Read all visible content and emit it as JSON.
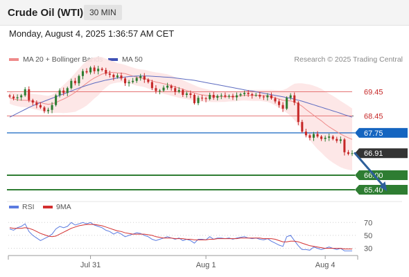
{
  "header": {
    "title": "Crude Oil (WTI)",
    "interval": "30 MIN",
    "datetime": "Monday, August 4, 2025 1:36:57 AM CET"
  },
  "legend": {
    "ma20": "MA 20 + Bollinger Bands",
    "ma50": "MA 50",
    "research": "Research © 2025 Trading Central"
  },
  "colors": {
    "bull": "#2e7d32",
    "bear": "#c62828",
    "ma20": "#ef8a8a",
    "ma50": "#5c6bc0",
    "band_fill": "#fde4e4",
    "resistance": "#e57373",
    "pivot": "#1565c0",
    "support": "#2e7d32",
    "arrow": "#2d5f9a",
    "rsi": "#5b7be0",
    "rsi_ma": "#d32f2f"
  },
  "chart_data": [
    {
      "type": "candlestick",
      "ylim": [
        65.2,
        69.95
      ],
      "x_ticks": [
        {
          "label": "Jul 31",
          "index": 21
        },
        {
          "label": "Aug 1",
          "index": 51
        },
        {
          "label": "Aug 4",
          "index": 82
        }
      ],
      "ma20_label": "MA 20 + Bollinger Bands",
      "ma50_label": "MA 50",
      "closes": [
        69.25,
        69.18,
        69.22,
        69.3,
        69.55,
        69.1,
        69.0,
        68.9,
        68.8,
        68.65,
        68.7,
        68.9,
        69.3,
        69.5,
        69.4,
        69.6,
        69.9,
        69.8,
        70.1,
        70.3,
        70.25,
        70.45,
        70.3,
        70.4,
        70.35,
        70.2,
        70.15,
        70.05,
        70.12,
        70.0,
        69.8,
        69.85,
        69.9,
        70.02,
        70.1,
        69.95,
        69.85,
        69.6,
        69.48,
        69.5,
        69.62,
        69.7,
        69.6,
        69.45,
        69.52,
        69.32,
        69.38,
        69.32,
        68.98,
        69.2,
        69.18,
        69.15,
        69.32,
        69.2,
        69.28,
        69.3,
        69.25,
        69.28,
        69.22,
        69.3,
        69.35,
        69.4,
        69.35,
        69.3,
        69.32,
        69.25,
        69.22,
        69.3,
        69.18,
        69.05,
        68.9,
        68.75,
        69.2,
        69.3,
        69.0,
        68.2,
        67.8,
        67.65,
        67.55,
        67.7,
        67.6,
        67.5,
        67.55,
        67.6,
        67.5,
        67.42,
        67.48,
        66.95,
        66.88,
        66.91
      ],
      "ma20": [
        69.2,
        69.15,
        69.12,
        69.1,
        69.1,
        69.08,
        69.05,
        69.02,
        69.0,
        68.96,
        68.93,
        68.95,
        69.0,
        69.08,
        69.15,
        69.23,
        69.32,
        69.42,
        69.55,
        69.68,
        69.8,
        69.92,
        70.02,
        70.1,
        70.18,
        70.22,
        70.25,
        70.25,
        70.23,
        70.22,
        70.2,
        70.15,
        70.1,
        70.05,
        70.02,
        70.0,
        69.95,
        69.9,
        69.85,
        69.82,
        69.78,
        69.75,
        69.7,
        69.65,
        69.6,
        69.55,
        69.5,
        69.45,
        69.4,
        69.35,
        69.32,
        69.3,
        69.28,
        69.26,
        69.25,
        69.25,
        69.24,
        69.25,
        69.25,
        69.26,
        69.28,
        69.3,
        69.3,
        69.3,
        69.3,
        69.3,
        69.29,
        69.28,
        69.25,
        69.2,
        69.15,
        69.1,
        69.08,
        69.07,
        69.03,
        68.95,
        68.85,
        68.72,
        68.6,
        68.48,
        68.36,
        68.25,
        68.12,
        68.0,
        67.9,
        67.8,
        67.7,
        67.62,
        67.55,
        67.48
      ],
      "ma50": [
        68.4,
        68.48,
        68.56,
        68.64,
        68.72,
        68.8,
        68.87,
        68.94,
        69.0,
        69.06,
        69.12,
        69.18,
        69.24,
        69.3,
        69.36,
        69.42,
        69.48,
        69.54,
        69.6,
        69.66,
        69.71,
        69.76,
        69.81,
        69.85,
        69.89,
        69.93,
        69.96,
        69.99,
        70.02,
        70.04,
        70.06,
        70.08,
        70.09,
        70.1,
        70.1,
        70.1,
        70.1,
        70.09,
        70.08,
        70.07,
        70.06,
        70.05,
        70.04,
        70.02,
        70.0,
        69.98,
        69.96,
        69.94,
        69.92,
        69.89,
        69.86,
        69.83,
        69.8,
        69.77,
        69.74,
        69.71,
        69.68,
        69.65,
        69.62,
        69.59,
        69.56,
        69.53,
        69.5,
        69.48,
        69.45,
        69.42,
        69.39,
        69.36,
        69.33,
        69.3,
        69.27,
        69.24,
        69.21,
        69.18,
        69.14,
        69.1,
        69.06,
        69.01,
        68.96,
        68.91,
        68.86,
        68.81,
        68.76,
        68.71,
        68.66,
        68.61,
        68.56,
        68.5,
        68.45,
        68.4
      ],
      "band_width": [
        0.25,
        0.26,
        0.27,
        0.28,
        0.29,
        0.3,
        0.31,
        0.32,
        0.33,
        0.34,
        0.35,
        0.38,
        0.42,
        0.5,
        0.58,
        0.65,
        0.72,
        0.8,
        0.85,
        0.9,
        0.92,
        0.9,
        0.85,
        0.8,
        0.7,
        0.6,
        0.5,
        0.45,
        0.4,
        0.38,
        0.36,
        0.35,
        0.35,
        0.35,
        0.35,
        0.36,
        0.37,
        0.38,
        0.4,
        0.41,
        0.42,
        0.42,
        0.42,
        0.41,
        0.4,
        0.38,
        0.36,
        0.34,
        0.32,
        0.3,
        0.28,
        0.26,
        0.25,
        0.24,
        0.23,
        0.22,
        0.21,
        0.2,
        0.2,
        0.2,
        0.2,
        0.21,
        0.22,
        0.23,
        0.23,
        0.23,
        0.24,
        0.25,
        0.28,
        0.32,
        0.36,
        0.42,
        0.5,
        0.62,
        0.75,
        0.85,
        0.95,
        1.05,
        1.15,
        1.22,
        1.28,
        1.32,
        1.35,
        1.37,
        1.38,
        1.38,
        1.37,
        1.35,
        1.32,
        1.28
      ],
      "levels": [
        {
          "label": "69.45",
          "value": 69.45,
          "kind": "resistance"
        },
        {
          "label": "68.45",
          "value": 68.45,
          "kind": "resistance"
        },
        {
          "label": "67.75",
          "value": 67.75,
          "kind": "pivot"
        },
        {
          "label": "66.91",
          "value": 66.91,
          "kind": "last"
        },
        {
          "label": "66.00",
          "value": 66.0,
          "kind": "support"
        },
        {
          "label": "65.40",
          "value": 65.4,
          "kind": "support"
        }
      ],
      "forecast_arrow": {
        "from": [
          89,
          66.91
        ],
        "to": [
          97,
          65.4
        ]
      }
    },
    {
      "type": "line",
      "legend": [
        "RSI",
        "9MA"
      ],
      "ylim": [
        22,
        80
      ],
      "y_ticks": [
        70,
        50,
        30
      ],
      "rsi": [
        60,
        58,
        62,
        64,
        68,
        56,
        50,
        46,
        42,
        45,
        48,
        52,
        60,
        64,
        62,
        64,
        70,
        66,
        68,
        70,
        68,
        70,
        66,
        64,
        62,
        58,
        56,
        52,
        55,
        52,
        48,
        50,
        52,
        54,
        53,
        50,
        48,
        44,
        42,
        44,
        46,
        48,
        46,
        44,
        46,
        42,
        44,
        42,
        38,
        44,
        44,
        43,
        48,
        44,
        46,
        46,
        45,
        46,
        44,
        46,
        47,
        48,
        46,
        45,
        46,
        44,
        43,
        45,
        41,
        38,
        35,
        33,
        48,
        50,
        42,
        34,
        28,
        28,
        27,
        32,
        30,
        28,
        30,
        32,
        30,
        28,
        30,
        26,
        26,
        26
      ],
      "rsi_ma": [
        62,
        61,
        61,
        61,
        62,
        61,
        59,
        56,
        53,
        51,
        49,
        48,
        49,
        52,
        55,
        58,
        61,
        63,
        65,
        66,
        67,
        67,
        67,
        66,
        65,
        63,
        61,
        59,
        57,
        56,
        54,
        53,
        52,
        52,
        52,
        52,
        51,
        50,
        48,
        47,
        46,
        46,
        46,
        45,
        45,
        45,
        44,
        44,
        43,
        43,
        43,
        43,
        44,
        44,
        45,
        45,
        45,
        45,
        45,
        45,
        46,
        46,
        46,
        46,
        46,
        46,
        45,
        45,
        45,
        44,
        42,
        40,
        40,
        41,
        41,
        40,
        38,
        36,
        34,
        33,
        32,
        31,
        30,
        30,
        30,
        30,
        30,
        29,
        29,
        29
      ]
    }
  ]
}
